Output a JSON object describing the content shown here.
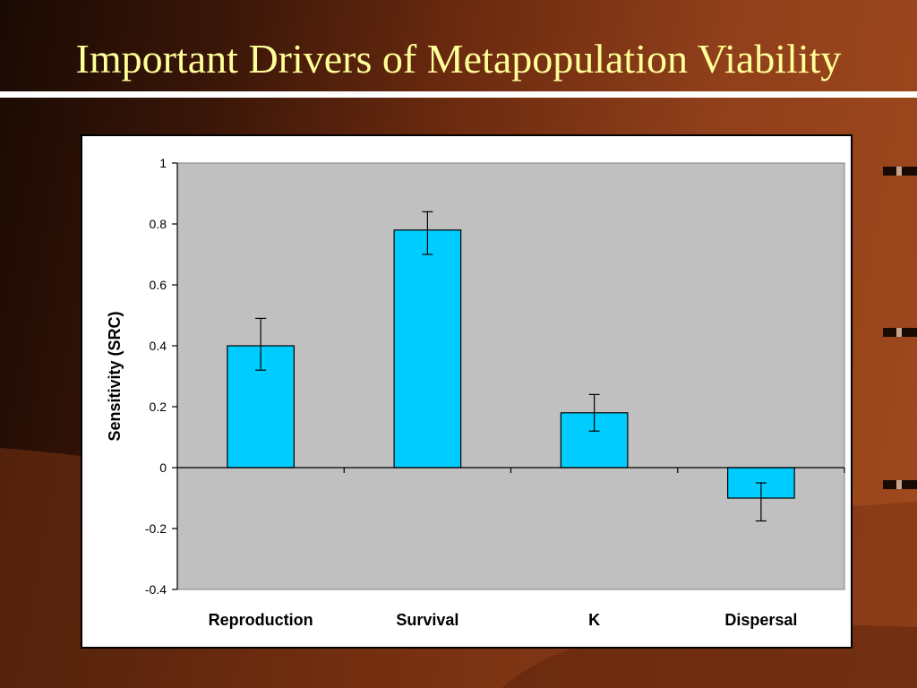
{
  "slide": {
    "title": "Important Drivers of Metapopulation Viability"
  },
  "colors": {
    "title_text": "#ffff99",
    "plot_background": "#c0c0c0",
    "bar_fill": "#00ccff",
    "bar_stroke": "#000000",
    "slide_brown": "#8f3f1a"
  },
  "chart_data": {
    "type": "bar",
    "title": "",
    "xlabel": "",
    "ylabel": "Sensitivity (SRC)",
    "categories": [
      "Reproduction",
      "Survival",
      "K",
      "Dispersal"
    ],
    "values": [
      0.4,
      0.78,
      0.18,
      -0.1
    ],
    "error_low": [
      0.32,
      0.7,
      0.12,
      -0.175
    ],
    "error_high": [
      0.49,
      0.84,
      0.24,
      -0.05
    ],
    "ylim": [
      -0.4,
      1
    ],
    "yticks": [
      1,
      0.8,
      0.6,
      0.4,
      0.2,
      0,
      -0.2,
      -0.4
    ],
    "ytick_labels": [
      "1",
      "0.8",
      "0.6",
      "0.4",
      "0.2",
      "0",
      "-0.2",
      "-0.4"
    ],
    "grid": false,
    "legend": "none"
  }
}
